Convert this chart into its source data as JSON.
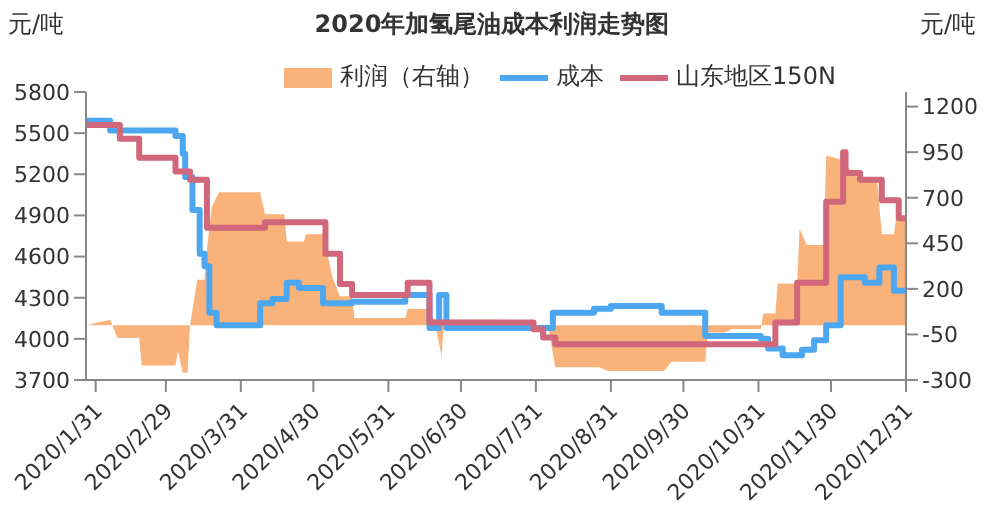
{
  "chart_data": {
    "type": "step",
    "title": "2020年加氢尾油成本利润走势图",
    "ylabel": "元/吨",
    "y2label": "元/吨",
    "xlim": [
      "2020-01-27",
      "2020-12-31"
    ],
    "xticks": [
      {
        "value": "2020-01-31",
        "label": "2020/1/31"
      },
      {
        "value": "2020-02-29",
        "label": "2020/2/29"
      },
      {
        "value": "2020-03-31",
        "label": "2020/3/31"
      },
      {
        "value": "2020-04-30",
        "label": "2020/4/30"
      },
      {
        "value": "2020-05-31",
        "label": "2020/5/31"
      },
      {
        "value": "2020-06-30",
        "label": "2020/6/30"
      },
      {
        "value": "2020-07-31",
        "label": "2020/7/31"
      },
      {
        "value": "2020-08-31",
        "label": "2020/8/31"
      },
      {
        "value": "2020-09-30",
        "label": "2020/9/30"
      },
      {
        "value": "2020-10-31",
        "label": "2020/10/31"
      },
      {
        "value": "2020-11-30",
        "label": "2020/11/30"
      },
      {
        "value": "2020-12-31",
        "label": "2020/12/31"
      }
    ],
    "ylim": [
      3700,
      5800
    ],
    "yticks": [
      3700,
      4000,
      4300,
      4600,
      4900,
      5200,
      5500,
      5800
    ],
    "y2lim": [
      -300,
      1280
    ],
    "y2ticks": [
      -300,
      -50,
      200,
      450,
      700,
      950,
      1200
    ],
    "grid": false,
    "legend": "top",
    "marker": "none",
    "series": [
      {
        "name": "利润（右轴）",
        "type": "area",
        "axis": "y2",
        "color": "#fab27b",
        "x": [
          "2020-01-27",
          "2020-02-06",
          "2020-02-09",
          "2020-02-18",
          "2020-02-19",
          "2020-03-04",
          "2020-03-05",
          "2020-03-07",
          "2020-03-09",
          "2020-03-10",
          "2020-03-13",
          "2020-03-16",
          "2020-03-17",
          "2020-03-19",
          "2020-03-22",
          "2020-04-08",
          "2020-04-10",
          "2020-04-18",
          "2020-04-19",
          "2020-04-26",
          "2020-04-27",
          "2020-05-04",
          "2020-05-08",
          "2020-05-11",
          "2020-05-16",
          "2020-05-17",
          "2020-06-07",
          "2020-06-08",
          "2020-06-16",
          "2020-06-19",
          "2020-06-22",
          "2020-06-23",
          "2020-07-16",
          "2020-07-18",
          "2020-08-05",
          "2020-08-08",
          "2020-08-26",
          "2020-08-30",
          "2020-09-22",
          "2020-09-25",
          "2020-10-09",
          "2020-10-10",
          "2020-10-17",
          "2020-10-20",
          "2020-11-01",
          "2020-11-02",
          "2020-11-07",
          "2020-11-08",
          "2020-11-16",
          "2020-11-17",
          "2020-11-20",
          "2020-11-27",
          "2020-11-28",
          "2020-12-04",
          "2020-12-11",
          "2020-12-19",
          "2020-12-21",
          "2020-12-26",
          "2020-12-27",
          "2020-12-31"
        ],
        "values": [
          0,
          30,
          -70,
          -70,
          -220,
          -220,
          -140,
          -260,
          -260,
          0,
          250,
          250,
          420,
          650,
          730,
          730,
          610,
          610,
          460,
          460,
          500,
          500,
          260,
          160,
          160,
          40,
          40,
          90,
          90,
          30,
          -170,
          30,
          30,
          0,
          0,
          -230,
          -230,
          -250,
          -250,
          -200,
          -200,
          -40,
          -40,
          -20,
          -20,
          65,
          65,
          230,
          230,
          530,
          440,
          440,
          930,
          910,
          810,
          810,
          500,
          500,
          600,
          600
        ]
      },
      {
        "name": "成本",
        "color": "#4da6f0",
        "x": [
          "2020-01-27",
          "2020-02-06",
          "2020-03-04",
          "2020-03-07",
          "2020-03-08",
          "2020-03-11",
          "2020-03-14",
          "2020-03-16",
          "2020-03-18",
          "2020-03-21",
          "2020-04-08",
          "2020-04-13",
          "2020-04-19",
          "2020-04-24",
          "2020-05-04",
          "2020-05-16",
          "2020-06-07",
          "2020-06-17",
          "2020-06-21",
          "2020-06-24",
          "2020-08-07",
          "2020-08-24",
          "2020-08-31",
          "2020-09-21",
          "2020-10-09",
          "2020-11-01",
          "2020-11-04",
          "2020-11-10",
          "2020-11-18",
          "2020-11-23",
          "2020-11-28",
          "2020-12-04",
          "2020-12-14",
          "2020-12-20",
          "2020-12-26",
          "2020-12-31"
        ],
        "values": [
          5590,
          5520,
          5480,
          5350,
          5180,
          4940,
          4620,
          4530,
          4190,
          4100,
          4260,
          4290,
          4410,
          4370,
          4260,
          4270,
          4320,
          4080,
          4320,
          4080,
          4190,
          4220,
          4240,
          4190,
          4020,
          4000,
          3930,
          3880,
          3920,
          3990,
          4100,
          4450,
          4410,
          4520,
          4350,
          4350
        ]
      },
      {
        "name": "山东地区150N",
        "color": "#d0677a",
        "x": [
          "2020-01-27",
          "2020-02-10",
          "2020-02-18",
          "2020-03-04",
          "2020-03-10",
          "2020-03-17",
          "2020-04-10",
          "2020-05-05",
          "2020-05-11",
          "2020-05-16",
          "2020-06-08",
          "2020-06-17",
          "2020-07-30",
          "2020-08-03",
          "2020-08-08",
          "2020-11-07",
          "2020-11-16",
          "2020-11-28",
          "2020-12-05",
          "2020-12-06",
          "2020-12-12",
          "2020-12-21",
          "2020-12-28",
          "2020-12-31"
        ],
        "values": [
          5560,
          5460,
          5320,
          5220,
          5160,
          4810,
          4850,
          4620,
          4400,
          4320,
          4410,
          4120,
          4070,
          4010,
          3960,
          4120,
          4410,
          5000,
          5360,
          5210,
          5160,
          5010,
          4880,
          4880
        ]
      }
    ]
  }
}
